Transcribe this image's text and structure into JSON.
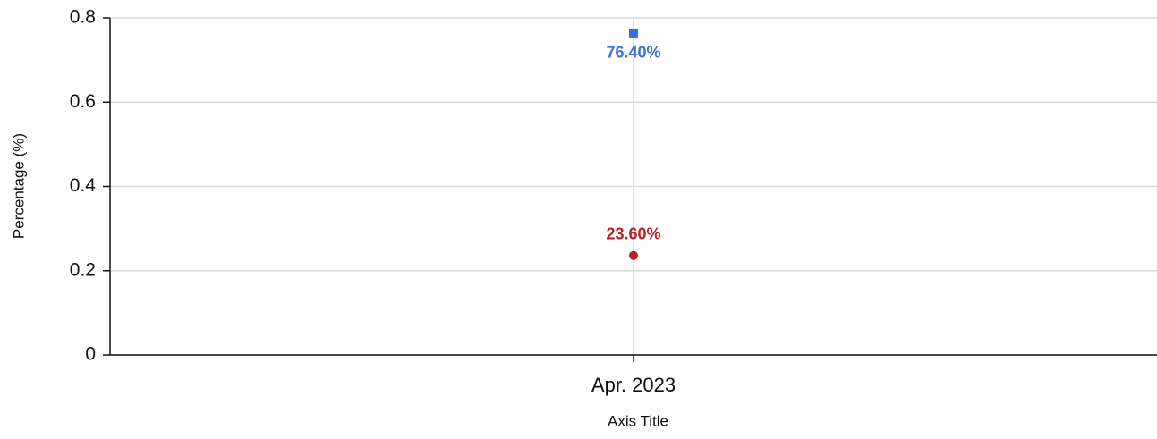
{
  "chart_data": {
    "type": "line",
    "categories": [
      "Apr. 2023"
    ],
    "series": [
      {
        "color": "#3b6fe0",
        "marker": "square",
        "label_position": "below",
        "values": [
          0.764
        ],
        "value_labels": [
          "76.40%"
        ]
      },
      {
        "color": "#b8202a",
        "marker": "circle",
        "label_position": "above",
        "values": [
          0.236
        ],
        "value_labels": [
          "23.60%"
        ]
      }
    ],
    "ylim": [
      0,
      0.8
    ],
    "yticks": [
      0,
      0.2,
      0.4,
      0.6,
      0.8
    ],
    "y_label": "Percentage (%)",
    "x_label": "Axis Title",
    "grid": true
  }
}
